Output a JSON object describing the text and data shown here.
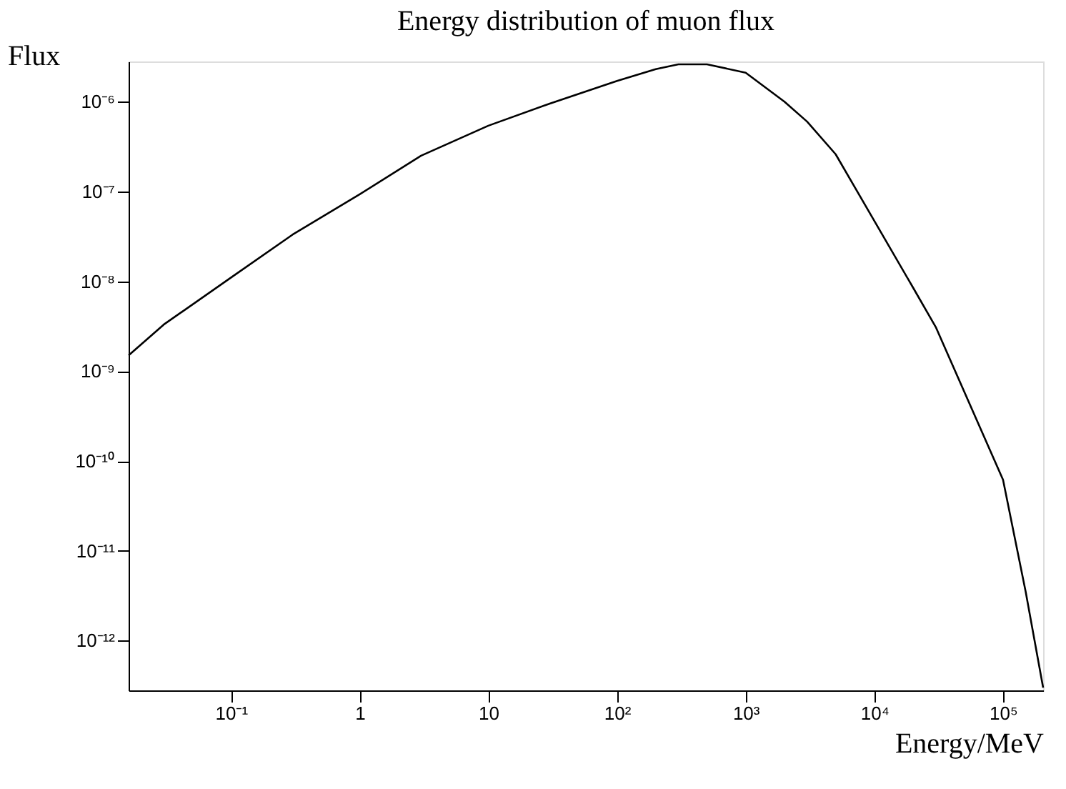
{
  "chart_data": {
    "type": "line",
    "title": "Energy distribution of muon flux",
    "xlabel": "Energy/MeV",
    "ylabel": "Flux",
    "x": [
      0.016,
      0.03,
      0.1,
      0.3,
      1,
      3,
      10,
      30,
      100,
      200,
      300,
      500,
      1000,
      2000,
      3000,
      5000,
      10000,
      20000,
      30000,
      100000,
      150000,
      205000
    ],
    "series": [
      {
        "color": "#000000",
        "values": [
          1.5e-09,
          3.3e-09,
          1.1e-08,
          3.3e-08,
          9.3e-08,
          2.5e-07,
          5.4e-07,
          9.5e-07,
          1.7e-06,
          2.3e-06,
          2.6e-06,
          2.6e-06,
          2.1e-06,
          1e-06,
          6e-07,
          2.6e-07,
          4.7e-08,
          8.5e-09,
          3.1e-09,
          6.2e-11,
          3.5e-12,
          3e-13
        ]
      }
    ],
    "log": "xy",
    "xlim": [
      0.016,
      205000
    ],
    "ylim": [
      2.8e-13,
      2.8e-06
    ],
    "xticks": [
      {
        "value": 0.1,
        "label": "10⁻¹"
      },
      1,
      10,
      {
        "value": 100,
        "label": "10²"
      },
      {
        "value": 1000,
        "label": "10³"
      },
      {
        "value": 10000,
        "label": "10⁴"
      },
      {
        "value": 100000,
        "label": "10⁵"
      }
    ],
    "yticks": [
      {
        "value": 1e-12,
        "label": "10⁻¹²"
      },
      {
        "value": 1e-11,
        "label": "10⁻¹¹"
      },
      {
        "value": 1e-10,
        "label": "10⁻¹⁰"
      },
      {
        "value": 1e-09,
        "label": "10⁻⁹"
      },
      {
        "value": 1e-08,
        "label": "10⁻⁸"
      },
      {
        "value": 1e-07,
        "label": "10⁻⁷"
      },
      {
        "value": 1e-06,
        "label": "10⁻⁶"
      }
    ],
    "grid": false,
    "marker": "none",
    "line_style": "solid"
  }
}
